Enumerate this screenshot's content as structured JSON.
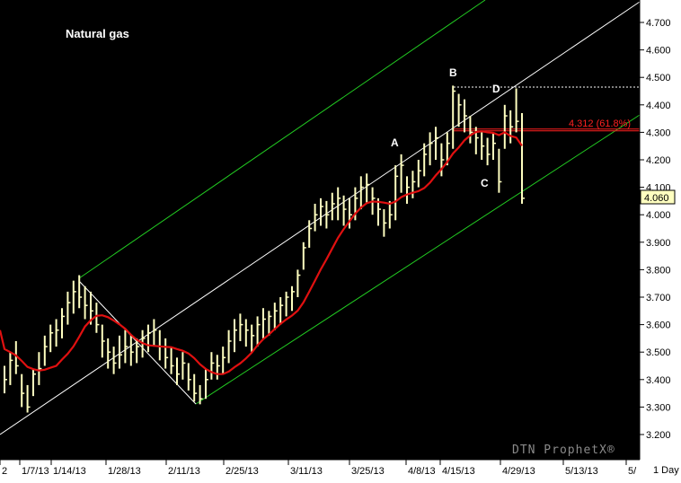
{
  "chart_data": {
    "type": "bar",
    "title": "Natural gas",
    "watermark": "DTN ProphetX®",
    "period_label": "1 Day",
    "ylim": [
      3.13,
      4.79
    ],
    "y_ticks": [
      "3.200",
      "3.300",
      "3.400",
      "3.500",
      "3.600",
      "3.700",
      "3.800",
      "3.900",
      "4.000",
      "4.100",
      "4.200",
      "4.300",
      "4.400",
      "4.500",
      "4.600",
      "4.700"
    ],
    "x_ticks": [
      "2",
      "1/7/13",
      "1/14/13",
      "1/28/13",
      "2/11/13",
      "2/25/13",
      "3/11/13",
      "3/25/13",
      "4/8/13",
      "4/15/13",
      "4/29/13",
      "5/13/13",
      "5/"
    ],
    "last_price": "4.060",
    "fib_level": {
      "value": 4.312,
      "label": "4.312 (61.8%)"
    },
    "wave_labels": [
      "A",
      "B",
      "C",
      "D"
    ],
    "colors": {
      "price_bars": "#ffffc0",
      "moving_average": "#e01010",
      "channel_outer": "#22cc22",
      "channel_mid": "#ffffff",
      "fib_line": "#ff2020",
      "background": "#000000"
    },
    "series": [
      {
        "values": [
          {
            "h": 3.45,
            "l": 3.35,
            "c": 3.4
          },
          {
            "h": 3.5,
            "l": 3.38,
            "c": 3.47
          },
          {
            "h": 3.54,
            "l": 3.42,
            "c": 3.45
          },
          {
            "h": 3.42,
            "l": 3.3,
            "c": 3.35
          },
          {
            "h": 3.38,
            "l": 3.28,
            "c": 3.3
          },
          {
            "h": 3.44,
            "l": 3.34,
            "c": 3.42
          },
          {
            "h": 3.5,
            "l": 3.38,
            "c": 3.44
          },
          {
            "h": 3.56,
            "l": 3.45,
            "c": 3.52
          },
          {
            "h": 3.6,
            "l": 3.5,
            "c": 3.57
          },
          {
            "h": 3.62,
            "l": 3.52,
            "c": 3.58
          },
          {
            "h": 3.66,
            "l": 3.55,
            "c": 3.63
          },
          {
            "h": 3.72,
            "l": 3.6,
            "c": 3.68
          },
          {
            "h": 3.76,
            "l": 3.64,
            "c": 3.72
          },
          {
            "h": 3.78,
            "l": 3.66,
            "c": 3.7
          },
          {
            "h": 3.74,
            "l": 3.62,
            "c": 3.67
          },
          {
            "h": 3.72,
            "l": 3.6,
            "c": 3.65
          },
          {
            "h": 3.68,
            "l": 3.57,
            "c": 3.6
          },
          {
            "h": 3.6,
            "l": 3.48,
            "c": 3.54
          },
          {
            "h": 3.55,
            "l": 3.44,
            "c": 3.5
          },
          {
            "h": 3.52,
            "l": 3.42,
            "c": 3.46
          },
          {
            "h": 3.56,
            "l": 3.44,
            "c": 3.49
          },
          {
            "h": 3.58,
            "l": 3.46,
            "c": 3.52
          },
          {
            "h": 3.56,
            "l": 3.45,
            "c": 3.5
          },
          {
            "h": 3.55,
            "l": 3.46,
            "c": 3.52
          },
          {
            "h": 3.58,
            "l": 3.48,
            "c": 3.55
          },
          {
            "h": 3.6,
            "l": 3.5,
            "c": 3.57
          },
          {
            "h": 3.62,
            "l": 3.52,
            "c": 3.58
          },
          {
            "h": 3.58,
            "l": 3.47,
            "c": 3.52
          },
          {
            "h": 3.55,
            "l": 3.44,
            "c": 3.48
          },
          {
            "h": 3.52,
            "l": 3.42,
            "c": 3.45
          },
          {
            "h": 3.48,
            "l": 3.38,
            "c": 3.42
          },
          {
            "h": 3.5,
            "l": 3.4,
            "c": 3.46
          },
          {
            "h": 3.46,
            "l": 3.36,
            "c": 3.4
          },
          {
            "h": 3.42,
            "l": 3.32,
            "c": 3.35
          },
          {
            "h": 3.38,
            "l": 3.31,
            "c": 3.33
          },
          {
            "h": 3.44,
            "l": 3.33,
            "c": 3.4
          },
          {
            "h": 3.5,
            "l": 3.4,
            "c": 3.46
          },
          {
            "h": 3.49,
            "l": 3.4,
            "c": 3.45
          },
          {
            "h": 3.52,
            "l": 3.42,
            "c": 3.48
          },
          {
            "h": 3.58,
            "l": 3.46,
            "c": 3.54
          },
          {
            "h": 3.62,
            "l": 3.5,
            "c": 3.58
          },
          {
            "h": 3.64,
            "l": 3.54,
            "c": 3.6
          },
          {
            "h": 3.62,
            "l": 3.52,
            "c": 3.58
          },
          {
            "h": 3.6,
            "l": 3.5,
            "c": 3.56
          },
          {
            "h": 3.63,
            "l": 3.52,
            "c": 3.6
          },
          {
            "h": 3.66,
            "l": 3.55,
            "c": 3.62
          },
          {
            "h": 3.65,
            "l": 3.56,
            "c": 3.63
          },
          {
            "h": 3.68,
            "l": 3.58,
            "c": 3.65
          },
          {
            "h": 3.7,
            "l": 3.6,
            "c": 3.67
          },
          {
            "h": 3.72,
            "l": 3.63,
            "c": 3.7
          },
          {
            "h": 3.74,
            "l": 3.65,
            "c": 3.72
          },
          {
            "h": 3.8,
            "l": 3.7,
            "c": 3.78
          },
          {
            "h": 3.9,
            "l": 3.8,
            "c": 3.88
          },
          {
            "h": 3.98,
            "l": 3.88,
            "c": 3.95
          },
          {
            "h": 4.04,
            "l": 3.94,
            "c": 4.0
          },
          {
            "h": 4.06,
            "l": 3.96,
            "c": 4.03
          },
          {
            "h": 4.05,
            "l": 3.95,
            "c": 4.0
          },
          {
            "h": 4.08,
            "l": 3.98,
            "c": 4.04
          },
          {
            "h": 4.1,
            "l": 3.98,
            "c": 4.06
          },
          {
            "h": 4.07,
            "l": 3.96,
            "c": 4.02
          },
          {
            "h": 4.06,
            "l": 3.95,
            "c": 4.0
          },
          {
            "h": 4.1,
            "l": 3.98,
            "c": 4.06
          },
          {
            "h": 4.14,
            "l": 4.02,
            "c": 4.1
          },
          {
            "h": 4.15,
            "l": 4.04,
            "c": 4.11
          },
          {
            "h": 4.1,
            "l": 4.0,
            "c": 4.06
          },
          {
            "h": 4.06,
            "l": 3.96,
            "c": 4.02
          },
          {
            "h": 4.02,
            "l": 3.92,
            "c": 3.97
          },
          {
            "h": 4.05,
            "l": 3.95,
            "c": 4.0
          },
          {
            "h": 4.18,
            "l": 3.98,
            "c": 4.14
          },
          {
            "h": 4.22,
            "l": 4.08,
            "c": 4.18
          },
          {
            "h": 4.14,
            "l": 4.04,
            "c": 4.1
          },
          {
            "h": 4.16,
            "l": 4.06,
            "c": 4.12
          },
          {
            "h": 4.2,
            "l": 4.1,
            "c": 4.16
          },
          {
            "h": 4.26,
            "l": 4.14,
            "c": 4.22
          },
          {
            "h": 4.3,
            "l": 4.18,
            "c": 4.26
          },
          {
            "h": 4.32,
            "l": 4.2,
            "c": 4.28
          },
          {
            "h": 4.26,
            "l": 4.14,
            "c": 4.2
          },
          {
            "h": 4.3,
            "l": 4.18,
            "c": 4.26
          },
          {
            "h": 4.47,
            "l": 4.24,
            "c": 4.45
          },
          {
            "h": 4.44,
            "l": 4.32,
            "c": 4.4
          },
          {
            "h": 4.42,
            "l": 4.3,
            "c": 4.36
          },
          {
            "h": 4.36,
            "l": 4.26,
            "c": 4.3
          },
          {
            "h": 4.32,
            "l": 4.22,
            "c": 4.28
          },
          {
            "h": 4.3,
            "l": 4.2,
            "c": 4.25
          },
          {
            "h": 4.28,
            "l": 4.18,
            "c": 4.22
          },
          {
            "h": 4.3,
            "l": 4.2,
            "c": 4.26
          },
          {
            "h": 4.24,
            "l": 4.08,
            "c": 4.12
          },
          {
            "h": 4.4,
            "l": 4.24,
            "c": 4.36
          },
          {
            "h": 4.38,
            "l": 4.26,
            "c": 4.32
          },
          {
            "h": 4.46,
            "l": 4.3,
            "c": 4.34
          },
          {
            "h": 4.37,
            "l": 4.04,
            "c": 4.06
          }
        ]
      }
    ]
  }
}
